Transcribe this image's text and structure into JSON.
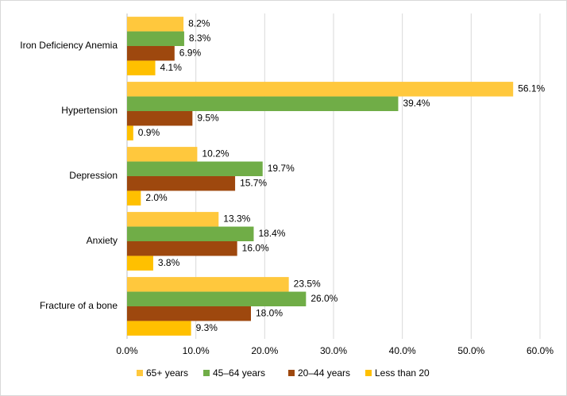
{
  "chart_data": {
    "type": "hbar",
    "categories": [
      "Iron Deficiency Anemia",
      "Hypertension",
      "Depression",
      "Anxiety",
      "Fracture of a bone"
    ],
    "series": [
      {
        "name": "65+ years",
        "color": "#ffc83d",
        "values": [
          8.2,
          56.1,
          10.2,
          13.3,
          23.5
        ],
        "value_labels": [
          "8.2%",
          "56.1%",
          "10.2%",
          "13.3%",
          "23.5%"
        ]
      },
      {
        "name": "45–64 years",
        "color": "#70ad47",
        "values": [
          8.3,
          39.4,
          19.7,
          18.4,
          26.0
        ],
        "value_labels": [
          "8.3%",
          "39.4%",
          "19.7%",
          "18.4%",
          "26.0%"
        ]
      },
      {
        "name": "20–44 years",
        "color": "#9e480e",
        "values": [
          6.9,
          9.5,
          15.7,
          16.0,
          18.0
        ],
        "value_labels": [
          "6.9%",
          "9.5%",
          "15.7%",
          "16.0%",
          "18.0%"
        ]
      },
      {
        "name": "Less than 20",
        "color": "#ffc000",
        "values": [
          4.1,
          0.9,
          2.0,
          3.8,
          9.3
        ],
        "value_labels": [
          "4.1%",
          "0.9%",
          "2.0%",
          "3.8%",
          "9.3%"
        ]
      }
    ],
    "xlim": [
      0,
      60
    ],
    "xticks": [
      {
        "value": 0,
        "label": "0.0%"
      },
      {
        "value": 10,
        "label": "10.0%"
      },
      {
        "value": 20,
        "label": "20.0%"
      },
      {
        "value": 30,
        "label": "30.0%"
      },
      {
        "value": 40,
        "label": "40.0%"
      },
      {
        "value": 50,
        "label": "50.0%"
      },
      {
        "value": 60,
        "label": "60.0%"
      }
    ],
    "grid": true,
    "legend": "bottom"
  }
}
